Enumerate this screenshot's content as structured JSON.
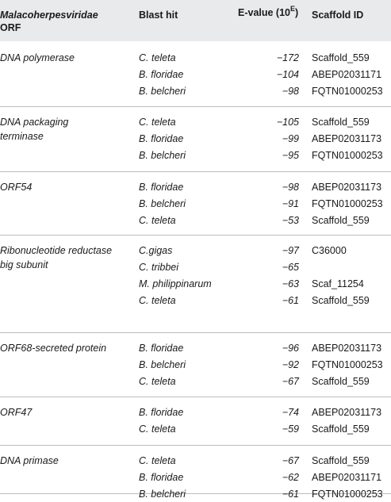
{
  "header": {
    "orf_line1": "Malacoherpesviridae",
    "orf_line2": "ORF",
    "blast_hit": "Blast hit",
    "evalue_text": "E-value (10",
    "evalue_sup": "E",
    "evalue_close": ")",
    "scaffold_id": "Scaffold ID"
  },
  "groups": [
    {
      "orf_lines": [
        "DNA polymerase"
      ],
      "rows": [
        {
          "blast": "C. teleta",
          "evalue": "−172",
          "scaffold": "Scaffold_559"
        },
        {
          "blast": "B. floridae",
          "evalue": "−104",
          "scaffold": "ABEP02031171"
        },
        {
          "blast": "B. belcheri",
          "evalue": "−98",
          "scaffold": "FQTN01000253"
        }
      ]
    },
    {
      "orf_lines": [
        "DNA packaging",
        "terminase"
      ],
      "rows": [
        {
          "blast": "C. teleta",
          "evalue": "−105",
          "scaffold": "Scaffold_559"
        },
        {
          "blast": "B. floridae",
          "evalue": "−99",
          "scaffold": "ABEP02031173"
        },
        {
          "blast": "B. belcheri",
          "evalue": "−95",
          "scaffold": "FQTN01000253"
        }
      ]
    },
    {
      "orf_lines": [
        "ORF54"
      ],
      "rows": [
        {
          "blast": "B. floridae",
          "evalue": "−98",
          "scaffold": "ABEP02031173"
        },
        {
          "blast": "B. belcheri",
          "evalue": "−91",
          "scaffold": "FQTN01000253"
        },
        {
          "blast": "C. teleta",
          "evalue": "−53",
          "scaffold": "Scaffold_559"
        }
      ]
    },
    {
      "orf_lines": [
        "Ribonucleotide reductase",
        "big subunit"
      ],
      "rows": [
        {
          "blast": "C.gigas",
          "evalue": "−97",
          "scaffold": "C36000"
        },
        {
          "blast": "C. tribbei",
          "evalue": "−65",
          "scaffold": ""
        },
        {
          "blast": "M. philippinarum",
          "evalue": "−63",
          "scaffold": "Scaf_11254"
        },
        {
          "blast": "C. teleta",
          "evalue": "−61",
          "scaffold": "Scaffold_559"
        }
      ]
    },
    {
      "orf_lines": [
        "ORF68-secreted protein"
      ],
      "rows": [
        {
          "blast": "B. floridae",
          "evalue": "−96",
          "scaffold": "ABEP02031173"
        },
        {
          "blast": "B. belcheri",
          "evalue": "−92",
          "scaffold": "FQTN01000253"
        },
        {
          "blast": "C. teleta",
          "evalue": "−67",
          "scaffold": "Scaffold_559"
        }
      ]
    },
    {
      "orf_lines": [
        "ORF47"
      ],
      "rows": [
        {
          "blast": "B. floridae",
          "evalue": "−74",
          "scaffold": "ABEP02031173"
        },
        {
          "blast": "C. teleta",
          "evalue": "−59",
          "scaffold": "Scaffold_559"
        }
      ]
    },
    {
      "orf_lines": [
        "DNA primase"
      ],
      "rows": [
        {
          "blast": "C. teleta",
          "evalue": "−67",
          "scaffold": "Scaffold_559"
        },
        {
          "blast": "B. floridae",
          "evalue": "−62",
          "scaffold": "ABEP02031171"
        },
        {
          "blast": "B. belcheri",
          "evalue": "−61",
          "scaffold": "FQTN01000253"
        }
      ]
    }
  ]
}
